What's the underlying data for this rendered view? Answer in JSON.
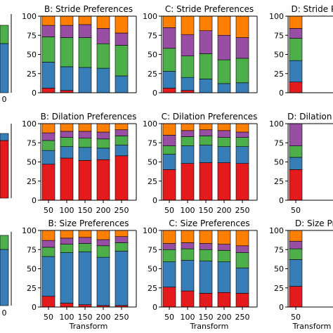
{
  "colors": {
    "red": "#e41a1c",
    "blue": "#377eb8",
    "green": "#4daf4a",
    "purple": "#984ea3",
    "orange": "#ff7f00"
  },
  "chart_data": [
    {
      "type": "bar",
      "stacked": true,
      "title": "B: Stride Preferences",
      "row": 0,
      "col": 1,
      "categories": [
        "",
        "",
        "",
        "",
        ""
      ],
      "ylim": [
        0,
        100
      ],
      "yticks": [
        0,
        25,
        50,
        75,
        100
      ],
      "xlabel": "",
      "series": [
        {
          "color": "red",
          "values": [
            6,
            3,
            0,
            0,
            0
          ]
        },
        {
          "color": "blue",
          "values": [
            34,
            31,
            33,
            32,
            22
          ]
        },
        {
          "color": "green",
          "values": [
            33,
            38,
            39,
            32,
            40
          ]
        },
        {
          "color": "purple",
          "values": [
            15,
            16,
            17,
            20,
            16
          ]
        },
        {
          "color": "orange",
          "values": [
            12,
            12,
            11,
            16,
            22
          ]
        }
      ]
    },
    {
      "type": "bar",
      "stacked": true,
      "title": "C: Stride Preferences",
      "row": 0,
      "col": 2,
      "categories": [
        "",
        "",
        "",
        "",
        ""
      ],
      "ylim": [
        0,
        100
      ],
      "yticks": [
        0,
        25,
        50,
        75,
        100
      ],
      "xlabel": "",
      "series": [
        {
          "color": "red",
          "values": [
            6,
            3,
            0,
            0,
            0
          ]
        },
        {
          "color": "blue",
          "values": [
            22,
            17,
            18,
            12,
            13
          ]
        },
        {
          "color": "green",
          "values": [
            30,
            28,
            33,
            31,
            32
          ]
        },
        {
          "color": "purple",
          "values": [
            27,
            28,
            30,
            32,
            27
          ]
        },
        {
          "color": "orange",
          "values": [
            15,
            24,
            19,
            25,
            28
          ]
        }
      ]
    },
    {
      "type": "bar",
      "stacked": true,
      "title": "D: Stride Preferences",
      "row": 0,
      "col": 3,
      "categories": [
        "",
        "",
        "",
        "",
        ""
      ],
      "ylim": [
        0,
        100
      ],
      "yticks": [
        0,
        25,
        50,
        75,
        100
      ],
      "xlabel": "",
      "series": [
        {
          "color": "red",
          "values": [
            14,
            0,
            0,
            0,
            0
          ]
        },
        {
          "color": "blue",
          "values": [
            28,
            0,
            0,
            0,
            0
          ]
        },
        {
          "color": "green",
          "values": [
            29,
            0,
            0,
            0,
            0
          ]
        },
        {
          "color": "purple",
          "values": [
            13,
            0,
            0,
            0,
            0
          ]
        },
        {
          "color": "orange",
          "values": [
            16,
            0,
            0,
            0,
            0
          ]
        }
      ]
    },
    {
      "type": "bar",
      "stacked": true,
      "title": "B: Dilation Preferences",
      "row": 1,
      "col": 1,
      "categories": [
        "50",
        "100",
        "150",
        "200",
        "250"
      ],
      "ylim": [
        0,
        100
      ],
      "yticks": [
        0,
        25,
        50,
        75,
        100
      ],
      "xlabel": "",
      "series": [
        {
          "color": "red",
          "values": [
            47,
            55,
            52,
            53,
            58
          ]
        },
        {
          "color": "blue",
          "values": [
            18,
            15,
            17,
            15,
            14
          ]
        },
        {
          "color": "green",
          "values": [
            13,
            12,
            12,
            12,
            12
          ]
        },
        {
          "color": "purple",
          "values": [
            10,
            8,
            9,
            9,
            8
          ]
        },
        {
          "color": "orange",
          "values": [
            12,
            10,
            10,
            11,
            8
          ]
        }
      ]
    },
    {
      "type": "bar",
      "stacked": true,
      "title": "C: Dilation Preferences",
      "row": 1,
      "col": 2,
      "categories": [
        "50",
        "100",
        "150",
        "200",
        "250"
      ],
      "ylim": [
        0,
        100
      ],
      "yticks": [
        0,
        25,
        50,
        75,
        100
      ],
      "xlabel": "",
      "series": [
        {
          "color": "red",
          "values": [
            40,
            48,
            49,
            49,
            48
          ]
        },
        {
          "color": "blue",
          "values": [
            20,
            23,
            23,
            21,
            22
          ]
        },
        {
          "color": "green",
          "values": [
            11,
            12,
            12,
            12,
            12
          ]
        },
        {
          "color": "purple",
          "values": [
            14,
            8,
            8,
            9,
            7
          ]
        },
        {
          "color": "orange",
          "values": [
            15,
            9,
            8,
            9,
            11
          ]
        }
      ]
    },
    {
      "type": "bar",
      "stacked": true,
      "title": "D: Dilation Preferences",
      "row": 1,
      "col": 3,
      "categories": [
        "50",
        "",
        "",
        "",
        ""
      ],
      "ylim": [
        0,
        100
      ],
      "yticks": [
        0,
        25,
        50,
        75,
        100
      ],
      "xlabel": "",
      "series": [
        {
          "color": "red",
          "values": [
            40,
            0,
            0,
            0,
            0
          ]
        },
        {
          "color": "blue",
          "values": [
            16,
            0,
            0,
            0,
            0
          ]
        },
        {
          "color": "green",
          "values": [
            15,
            0,
            0,
            0,
            0
          ]
        },
        {
          "color": "purple",
          "values": [
            29,
            0,
            0,
            0,
            0
          ]
        },
        {
          "color": "orange",
          "values": [
            0,
            0,
            0,
            0,
            0
          ]
        }
      ]
    },
    {
      "type": "bar",
      "stacked": true,
      "title": "B: Size Preferences",
      "row": 2,
      "col": 1,
      "categories": [
        "50",
        "100",
        "150",
        "200",
        "250"
      ],
      "ylim": [
        0,
        100
      ],
      "yticks": [
        0,
        25,
        50,
        75,
        100
      ],
      "xlabel": "Transform",
      "series": [
        {
          "color": "red",
          "values": [
            14,
            5,
            3,
            2,
            2
          ]
        },
        {
          "color": "blue",
          "values": [
            52,
            66,
            69,
            63,
            71
          ]
        },
        {
          "color": "green",
          "values": [
            12,
            11,
            11,
            15,
            11
          ]
        },
        {
          "color": "purple",
          "values": [
            9,
            8,
            8,
            8,
            8
          ]
        },
        {
          "color": "orange",
          "values": [
            13,
            10,
            9,
            12,
            8
          ]
        }
      ]
    },
    {
      "type": "bar",
      "stacked": true,
      "title": "C: Size Preferences",
      "row": 2,
      "col": 2,
      "categories": [
        "50",
        "100",
        "150",
        "200",
        "250"
      ],
      "ylim": [
        0,
        100
      ],
      "yticks": [
        0,
        25,
        50,
        75,
        100
      ],
      "xlabel": "Transform",
      "series": [
        {
          "color": "red",
          "values": [
            26,
            21,
            18,
            19,
            18
          ]
        },
        {
          "color": "blue",
          "values": [
            33,
            40,
            42,
            40,
            33
          ]
        },
        {
          "color": "green",
          "values": [
            16,
            15,
            15,
            15,
            20
          ]
        },
        {
          "color": "purple",
          "values": [
            8,
            8,
            8,
            8,
            9
          ]
        },
        {
          "color": "orange",
          "values": [
            17,
            16,
            17,
            18,
            20
          ]
        }
      ]
    },
    {
      "type": "bar",
      "stacked": true,
      "title": "D: Size Preferences",
      "row": 2,
      "col": 3,
      "categories": [
        "50",
        "",
        "",
        "",
        ""
      ],
      "ylim": [
        0,
        100
      ],
      "yticks": [
        0,
        25,
        50,
        75,
        100
      ],
      "xlabel": "Transform",
      "series": [
        {
          "color": "red",
          "values": [
            27,
            0,
            0,
            0,
            0
          ]
        },
        {
          "color": "blue",
          "values": [
            35,
            0,
            0,
            0,
            0
          ]
        },
        {
          "color": "green",
          "values": [
            14,
            0,
            0,
            0,
            0
          ]
        },
        {
          "color": "purple",
          "values": [
            10,
            0,
            0,
            0,
            0
          ]
        },
        {
          "color": "orange",
          "values": [
            14,
            0,
            0,
            0,
            0
          ]
        }
      ]
    }
  ]
}
